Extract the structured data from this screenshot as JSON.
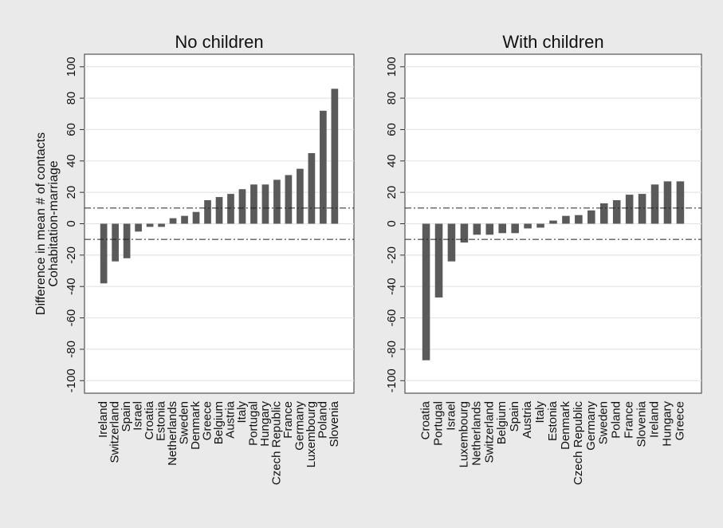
{
  "chart_data": [
    {
      "type": "bar",
      "title": "No children",
      "ylabel": [
        "Difference in mean # of contacts",
        "Cohabitation-marriage"
      ],
      "categories": [
        "Ireland",
        "Switzerland",
        "Spain",
        "Israel",
        "Croatia",
        "Estonia",
        "Netherlands",
        "Sweden",
        "Denmark",
        "Greece",
        "Belgium",
        "Austria",
        "Italy",
        "Portugal",
        "Hungary",
        "Czech Republic",
        "France",
        "Germany",
        "Luxembourg",
        "Poland",
        "Slovenia"
      ],
      "values": [
        -38,
        -24,
        -22,
        -5,
        -2,
        -2,
        3.5,
        5,
        7.5,
        15,
        17,
        19,
        22,
        25,
        25,
        28,
        31,
        35,
        45,
        72,
        86
      ],
      "color": "#5a5a5a",
      "ylim": [
        -108,
        108
      ],
      "yticks": [
        -100,
        -80,
        -60,
        -40,
        -20,
        0,
        20,
        40,
        60,
        80,
        100
      ],
      "grid": true,
      "hlines": [
        10,
        -10
      ]
    },
    {
      "type": "bar",
      "title": "With children",
      "categories": [
        "Croatia",
        "Portugal",
        "Israel",
        "Luxembourg",
        "Netherlands",
        "Switzerland",
        "Belgium",
        "Spain",
        "Austria",
        "Italy",
        "Estonia",
        "Denmark",
        "Czech Republic",
        "Germany",
        "Sweden",
        "Poland",
        "France",
        "Slovenia",
        "Ireland",
        "Hungary",
        "Greece"
      ],
      "values": [
        -87,
        -47,
        -24,
        -12,
        -7,
        -7,
        -6,
        -6,
        -3,
        -2.5,
        2,
        5,
        5.5,
        8.5,
        13,
        15,
        18.5,
        19,
        25,
        27,
        27
      ],
      "color": "#5a5a5a",
      "ylim": [
        -108,
        108
      ],
      "yticks": [
        -100,
        -80,
        -60,
        -40,
        -20,
        0,
        20,
        40,
        60,
        80,
        100
      ],
      "grid": true,
      "hlines": [
        10,
        -10
      ]
    }
  ]
}
